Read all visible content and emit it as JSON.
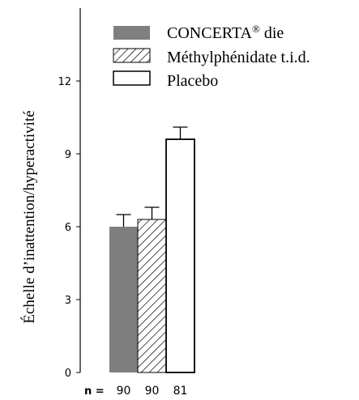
{
  "chart_data": {
    "type": "bar",
    "ylabel": "Échelle d’inattention/hyperactivité",
    "ylim": [
      0,
      15
    ],
    "yticks": [
      0,
      3,
      6,
      9,
      12
    ],
    "series": [
      {
        "name": "CONCERTA",
        "name_superscript": "®",
        "name_suffix": " die",
        "value": 6.0,
        "error": 0.5,
        "fill": "#7f7f7f",
        "pattern": "solid",
        "n": "90"
      },
      {
        "name": "Méthylphénidate t.i.d.",
        "value": 6.3,
        "error": 0.5,
        "fill": "#ffffff",
        "pattern": "hatch",
        "n": "90"
      },
      {
        "name": "Placebo",
        "value": 9.6,
        "error": 0.5,
        "fill": "#ffffff",
        "pattern": "none",
        "n": "81"
      }
    ],
    "n_label": "n ="
  }
}
